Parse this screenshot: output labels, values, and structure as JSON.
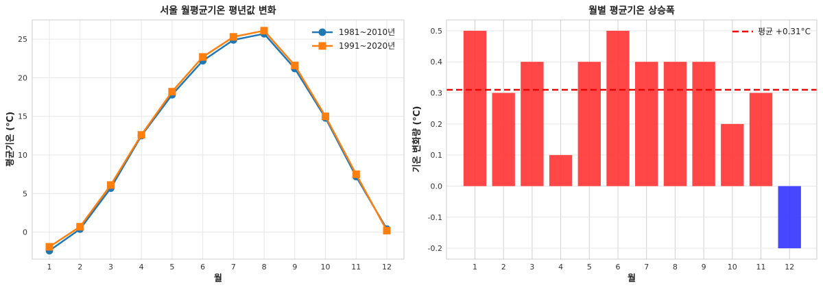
{
  "chart_data": [
    {
      "type": "line",
      "title": "서울 월평균기온 평년값 변화",
      "xlabel": "월",
      "ylabel": "평균기온 (°C)",
      "categories": [
        "1",
        "2",
        "3",
        "4",
        "5",
        "6",
        "7",
        "8",
        "9",
        "10",
        "11",
        "12"
      ],
      "x": [
        1,
        2,
        3,
        4,
        5,
        6,
        7,
        8,
        9,
        10,
        11,
        12
      ],
      "ylim": [
        -3.5,
        27.5
      ],
      "yticks": [
        "0",
        "5",
        "10",
        "15",
        "20",
        "25"
      ],
      "grid": true,
      "legend_position": "top-right",
      "series": [
        {
          "name": "1981~2010년",
          "marker": "circle",
          "color": "#1f77b4",
          "values": [
            -2.4,
            0.4,
            5.7,
            12.5,
            17.8,
            22.2,
            24.9,
            25.7,
            21.2,
            14.8,
            7.2,
            0.4
          ]
        },
        {
          "name": "1991~2020년",
          "marker": "square",
          "color": "#ff7f0e",
          "values": [
            -1.9,
            0.7,
            6.1,
            12.6,
            18.2,
            22.7,
            25.3,
            26.1,
            21.6,
            15.0,
            7.5,
            0.2
          ]
        }
      ]
    },
    {
      "type": "bar",
      "title": "월별 평균기온 상승폭",
      "xlabel": "월",
      "ylabel": "기온 변화량 (°C)",
      "categories": [
        "1",
        "2",
        "3",
        "4",
        "5",
        "6",
        "7",
        "8",
        "9",
        "10",
        "11",
        "12"
      ],
      "values": [
        0.5,
        0.3,
        0.4,
        0.1,
        0.4,
        0.5,
        0.4,
        0.4,
        0.4,
        0.2,
        0.3,
        -0.2
      ],
      "ylim": [
        -0.235,
        0.535
      ],
      "yticks": [
        "-0.2",
        "-0.1",
        "0.0",
        "0.1",
        "0.2",
        "0.3",
        "0.4",
        "0.5"
      ],
      "grid": true,
      "legend_position": "top-right",
      "positive_color": "#ff3333",
      "negative_color": "#3333ff",
      "mean_line": {
        "value": 0.31,
        "label": "평균 +0.31°C",
        "color": "#ee0000"
      }
    }
  ]
}
